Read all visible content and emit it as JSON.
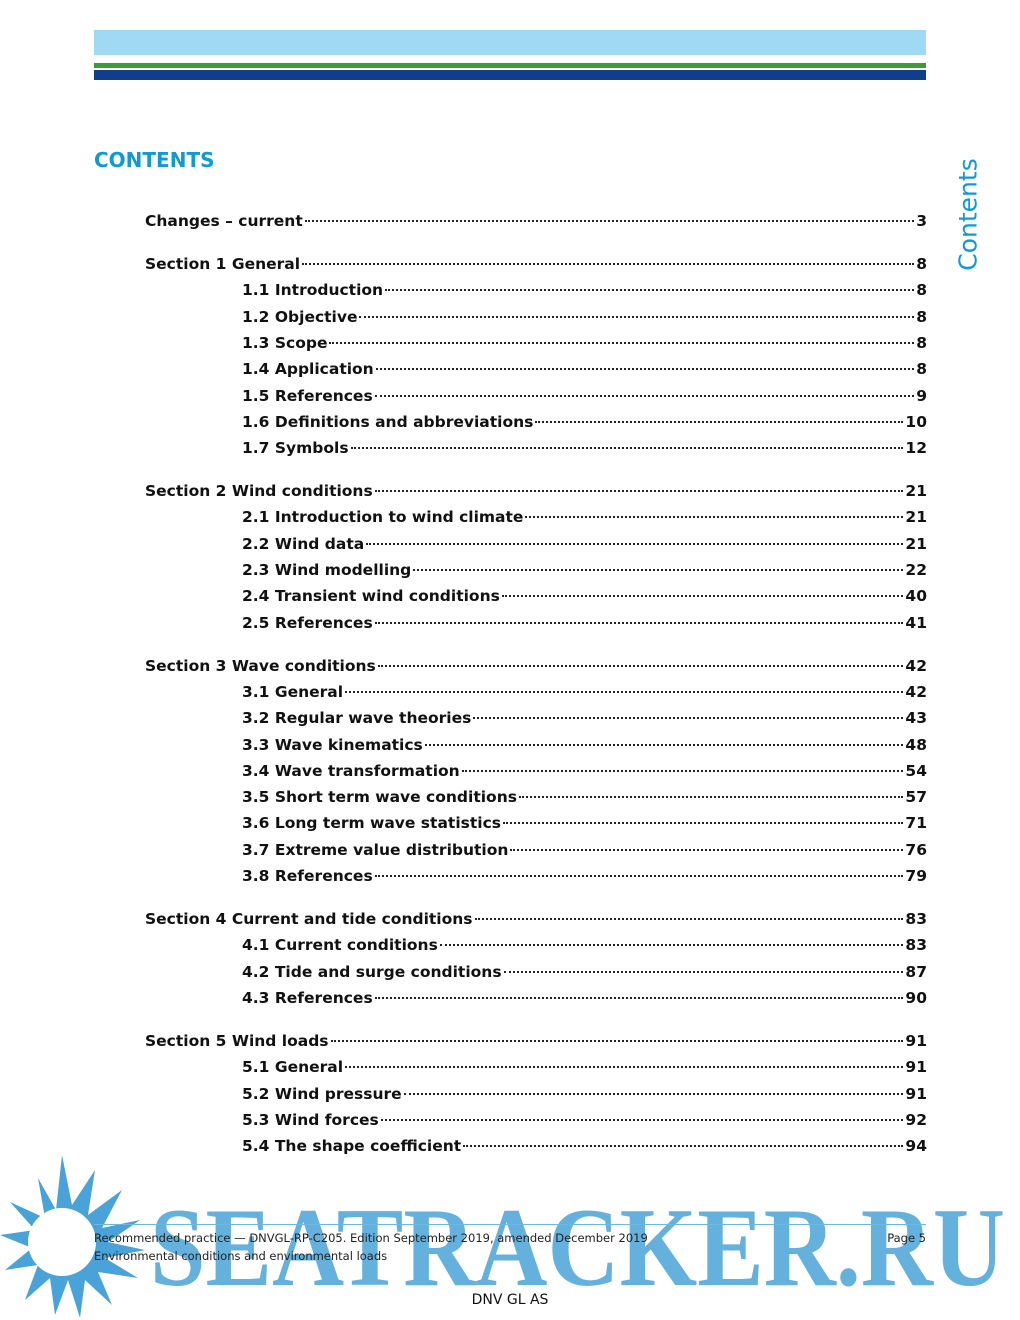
{
  "header": {
    "title": "CONTENTS",
    "side_tab": "Contents"
  },
  "toc": [
    {
      "label": "Changes – current",
      "page": 3
    },
    {
      "label": "Section 1 General",
      "page": 8,
      "items": [
        {
          "label": "1.1 Introduction",
          "page": 8
        },
        {
          "label": "1.2 Objective",
          "page": 8
        },
        {
          "label": "1.3 Scope",
          "page": 8
        },
        {
          "label": "1.4 Application",
          "page": 8
        },
        {
          "label": "1.5 References",
          "page": 9
        },
        {
          "label": "1.6 Definitions and abbreviations",
          "page": 10
        },
        {
          "label": "1.7 Symbols",
          "page": 12
        }
      ]
    },
    {
      "label": "Section 2 Wind conditions",
      "page": 21,
      "items": [
        {
          "label": "2.1 Introduction to wind climate",
          "page": 21
        },
        {
          "label": "2.2 Wind data",
          "page": 21
        },
        {
          "label": "2.3 Wind modelling",
          "page": 22
        },
        {
          "label": "2.4 Transient wind conditions",
          "page": 40
        },
        {
          "label": "2.5 References",
          "page": 41
        }
      ]
    },
    {
      "label": "Section 3 Wave conditions",
      "page": 42,
      "items": [
        {
          "label": "3.1 General",
          "page": 42
        },
        {
          "label": "3.2 Regular wave theories",
          "page": 43
        },
        {
          "label": "3.3 Wave kinematics",
          "page": 48
        },
        {
          "label": "3.4 Wave transformation",
          "page": 54
        },
        {
          "label": "3.5 Short term wave conditions",
          "page": 57
        },
        {
          "label": "3.6 Long term wave statistics",
          "page": 71
        },
        {
          "label": "3.7 Extreme value distribution",
          "page": 76
        },
        {
          "label": "3.8 References",
          "page": 79
        }
      ]
    },
    {
      "label": "Section 4 Current and tide conditions",
      "page": 83,
      "items": [
        {
          "label": "4.1 Current conditions",
          "page": 83
        },
        {
          "label": "4.2 Tide and surge conditions",
          "page": 87
        },
        {
          "label": "4.3 References",
          "page": 90
        }
      ]
    },
    {
      "label": "Section 5 Wind loads",
      "page": 91,
      "items": [
        {
          "label": "5.1 General",
          "page": 91
        },
        {
          "label": "5.2 Wind pressure",
          "page": 91
        },
        {
          "label": "5.3 Wind forces",
          "page": 92
        },
        {
          "label": "5.4 The shape coefficient",
          "page": 94
        }
      ]
    }
  ],
  "footer": {
    "line1": "Recommended practice — DNVGL-RP-C205. Edition September 2019, amended December 2019",
    "page": "Page 5",
    "line2": "Environmental conditions and environmental loads",
    "publisher": "DNV GL AS"
  },
  "watermark": "SEATRACKER.RU"
}
